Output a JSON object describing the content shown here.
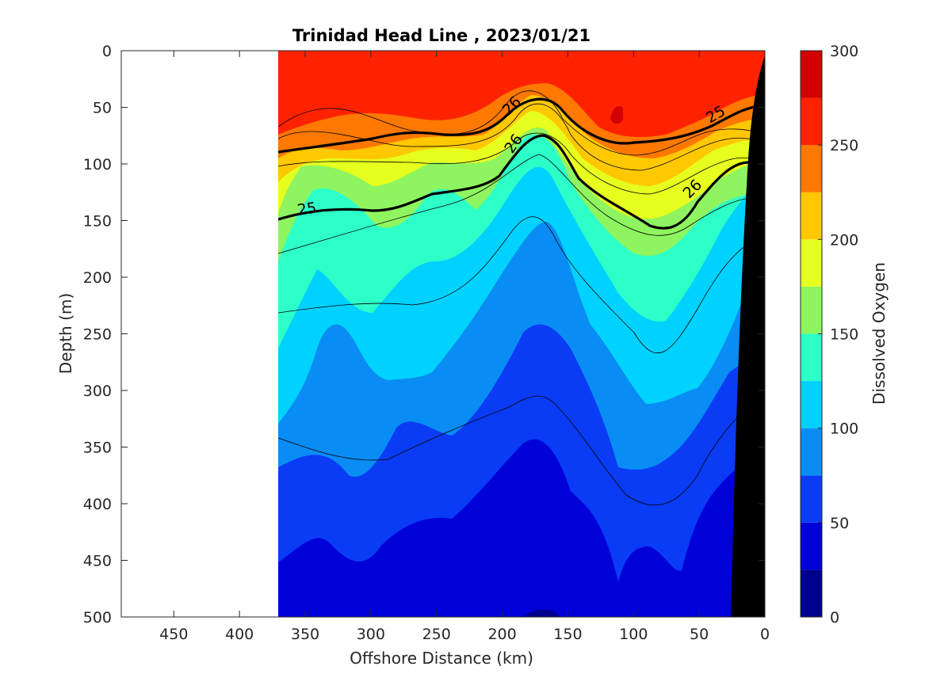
{
  "chart_data": {
    "type": "contour",
    "title": "Trinidad Head Line , 2023/01/21",
    "xlabel": "Offshore Distance (km)",
    "ylabel": "Depth (m)",
    "colorbar_label": "Dissolved Oxygen",
    "xlim": [
      490,
      0
    ],
    "ylim": [
      500,
      0
    ],
    "x_reversed": true,
    "y_reversed": true,
    "x_ticks": [
      "450",
      "400",
      "350",
      "300",
      "250",
      "200",
      "150",
      "100",
      "50",
      "0"
    ],
    "y_ticks": [
      "0",
      "50",
      "100",
      "150",
      "200",
      "250",
      "300",
      "350",
      "400",
      "450",
      "500"
    ],
    "colorbar_ticks": [
      "0",
      "50",
      "100",
      "150",
      "200",
      "250",
      "300"
    ],
    "colorbar_range": [
      0,
      300
    ],
    "levels": [
      0,
      25,
      50,
      75,
      100,
      125,
      150,
      175,
      200,
      225,
      250,
      275,
      300
    ],
    "level_colors": [
      "#00008f",
      "#0000d9",
      "#0a3cf5",
      "#0a8cf5",
      "#00d2ff",
      "#2dffc8",
      "#8ef560",
      "#e6ff1e",
      "#ffc800",
      "#ff7800",
      "#ff2200",
      "#d20000"
    ],
    "data_extent_km": [
      370,
      0
    ],
    "density_contour_labels": [
      "25",
      "26",
      "26",
      "25",
      "26"
    ],
    "grid": false,
    "colorbar_position": "right"
  }
}
